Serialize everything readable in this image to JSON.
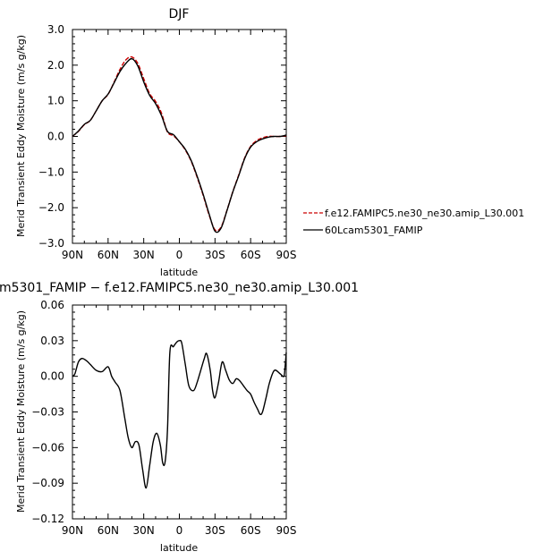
{
  "chart_data": [
    {
      "type": "line",
      "title": "DJF",
      "xlabel": "latitude",
      "ylabel": "Merid Transient Eddy Moisture  (m/s g/kg)",
      "xlim": [
        90,
        -90
      ],
      "ylim": [
        -3.0,
        3.0
      ],
      "xticks": [
        90,
        60,
        30,
        0,
        -30,
        -60,
        -90
      ],
      "xtick_labels": [
        "90N",
        "60N",
        "30N",
        "0",
        "30S",
        "60S",
        "90S"
      ],
      "yticks": [
        -3.0,
        -2.0,
        -1.0,
        0.0,
        1.0,
        2.0,
        3.0
      ],
      "ytick_labels": [
        "−3.0",
        "−2.0",
        "−1.0",
        "0.0",
        "1.0",
        "2.0",
        "3.0"
      ],
      "legend_position": "right",
      "series": [
        {
          "name": "f.e12.FAMIPC5.ne30_ne30.amip_L30.001",
          "color": "#cc0000",
          "dash": "dashed",
          "x": [
            90,
            85,
            80,
            75,
            70,
            65,
            60,
            55,
            50,
            45,
            40,
            35,
            30,
            25,
            20,
            15,
            10,
            5,
            0,
            -5,
            -10,
            -15,
            -20,
            -25,
            -30,
            -35,
            -40,
            -45,
            -50,
            -55,
            -60,
            -65,
            -70,
            -75,
            -80,
            -85,
            -90
          ],
          "y": [
            0.0,
            0.14,
            0.33,
            0.45,
            0.72,
            1.0,
            1.18,
            1.52,
            1.88,
            2.15,
            2.23,
            2.05,
            1.62,
            1.2,
            0.98,
            0.65,
            0.12,
            0.02,
            -0.15,
            -0.38,
            -0.7,
            -1.15,
            -1.65,
            -2.2,
            -2.62,
            -2.55,
            -2.08,
            -1.55,
            -1.08,
            -0.6,
            -0.28,
            -0.12,
            -0.04,
            0.0,
            0.0,
            0.0,
            0.02
          ]
        },
        {
          "name": "60Lcam5301_FAMIP",
          "color": "#000000",
          "dash": "solid",
          "x": [
            90,
            85,
            80,
            75,
            70,
            65,
            60,
            55,
            50,
            45,
            40,
            35,
            30,
            25,
            20,
            15,
            10,
            5,
            0,
            -5,
            -10,
            -15,
            -20,
            -25,
            -30,
            -35,
            -40,
            -45,
            -50,
            -55,
            -60,
            -65,
            -70,
            -75,
            -80,
            -85,
            -90
          ],
          "y": [
            0.0,
            0.15,
            0.34,
            0.45,
            0.72,
            1.0,
            1.19,
            1.5,
            1.82,
            2.05,
            2.18,
            1.98,
            1.53,
            1.15,
            0.92,
            0.58,
            0.14,
            0.05,
            -0.15,
            -0.36,
            -0.68,
            -1.12,
            -1.62,
            -2.17,
            -2.66,
            -2.58,
            -2.09,
            -1.56,
            -1.1,
            -0.62,
            -0.3,
            -0.15,
            -0.07,
            -0.02,
            0.0,
            0.0,
            0.04
          ]
        }
      ]
    },
    {
      "type": "line",
      "title": "m5301_FAMIP − f.e12.FAMIPC5.ne30_ne30.amip_L30.001",
      "xlabel": "latitude",
      "ylabel": "Merid Transient Eddy Moisture  (m/s g/kg)",
      "xlim": [
        90,
        -90
      ],
      "ylim": [
        -0.12,
        0.06
      ],
      "xticks": [
        90,
        60,
        30,
        0,
        -30,
        -60,
        -90
      ],
      "xtick_labels": [
        "90N",
        "60N",
        "30N",
        "0",
        "30S",
        "60S",
        "90S"
      ],
      "yticks": [
        -0.12,
        -0.09,
        -0.06,
        -0.03,
        0.0,
        0.03,
        0.06
      ],
      "ytick_labels": [
        "−0.12",
        "−0.09",
        "−0.06",
        "−0.03",
        "0.00",
        "0.03",
        "0.06"
      ],
      "series": [
        {
          "color": "#000000",
          "dash": "solid",
          "x": [
            90,
            88,
            85,
            82,
            78,
            75,
            70,
            65,
            60,
            57,
            54,
            50,
            46,
            43,
            40,
            37,
            34,
            31,
            28,
            25,
            22,
            19,
            16,
            14,
            12,
            10,
            8,
            5,
            2,
            0,
            -2,
            -5,
            -8,
            -12,
            -15,
            -18,
            -21,
            -23,
            -26,
            -28,
            -30,
            -33,
            -36,
            -39,
            -42,
            -45,
            -48,
            -51,
            -54,
            -57,
            -60,
            -63,
            -66,
            -68,
            -70,
            -73,
            -76,
            -80,
            -85,
            -88,
            -89,
            -90
          ],
          "y": [
            0.0,
            0.002,
            0.012,
            0.015,
            0.013,
            0.01,
            0.005,
            0.004,
            0.008,
            0.0,
            -0.005,
            -0.012,
            -0.035,
            -0.052,
            -0.06,
            -0.055,
            -0.058,
            -0.078,
            -0.094,
            -0.075,
            -0.055,
            -0.048,
            -0.058,
            -0.073,
            -0.072,
            -0.045,
            0.02,
            0.025,
            0.029,
            0.03,
            0.028,
            0.01,
            -0.008,
            -0.012,
            -0.005,
            0.005,
            0.015,
            0.019,
            0.005,
            -0.012,
            -0.018,
            -0.005,
            0.012,
            0.005,
            -0.003,
            -0.006,
            -0.002,
            -0.004,
            -0.008,
            -0.012,
            -0.015,
            -0.022,
            -0.028,
            -0.032,
            -0.03,
            -0.018,
            -0.005,
            0.005,
            0.002,
            0.0,
            0.008,
            0.02
          ]
        }
      ]
    }
  ]
}
